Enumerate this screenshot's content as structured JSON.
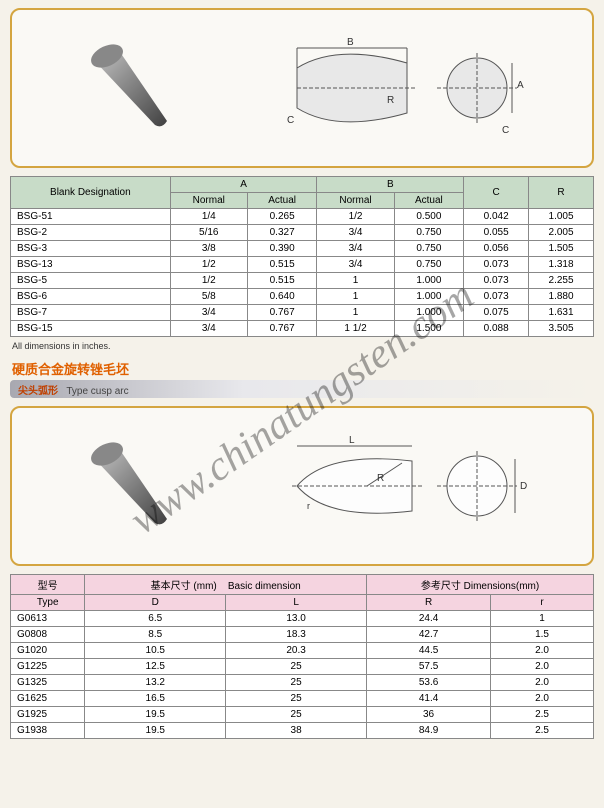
{
  "watermark": "www.chinatungsten.com",
  "footnote": "All dimensions in inches.",
  "section_title": "硬质合金旋转锉毛坯",
  "subtitle_cn": "尖头弧形",
  "subtitle_en": "Type cusp arc",
  "figure1": {
    "labels": {
      "B": "B",
      "A": "A",
      "C1": "C",
      "C2": "C",
      "R": "R"
    },
    "colors": {
      "card_border": "#d4a540",
      "card_bg": "#faf9f5",
      "cone_dark": "#5a5a5a",
      "cone_light": "#b8b8b8",
      "line": "#555"
    }
  },
  "figure2": {
    "labels": {
      "L": "L",
      "D": "D",
      "R": "R",
      "r": "r"
    },
    "colors": {
      "line": "#555"
    }
  },
  "table1": {
    "header_color": "#c8dcc8",
    "row_bg": "#ffffff",
    "headers": {
      "blank": "Blank Designation",
      "A": "A",
      "B": "B",
      "C": "C",
      "R": "R",
      "normal": "Normal",
      "actual": "Actual"
    },
    "rows": [
      {
        "d": "BSG-51",
        "an": "1/4",
        "aa": "0.265",
        "bn": "1/2",
        "ba": "0.500",
        "c": "0.042",
        "r": "1.005"
      },
      {
        "d": "BSG-2",
        "an": "5/16",
        "aa": "0.327",
        "bn": "3/4",
        "ba": "0.750",
        "c": "0.055",
        "r": "2.005"
      },
      {
        "d": "BSG-3",
        "an": "3/8",
        "aa": "0.390",
        "bn": "3/4",
        "ba": "0.750",
        "c": "0.056",
        "r": "1.505"
      },
      {
        "d": "BSG-13",
        "an": "1/2",
        "aa": "0.515",
        "bn": "3/4",
        "ba": "0.750",
        "c": "0.073",
        "r": "1.318"
      },
      {
        "d": "BSG-5",
        "an": "1/2",
        "aa": "0.515",
        "bn": "1",
        "ba": "1.000",
        "c": "0.073",
        "r": "2.255"
      },
      {
        "d": "BSG-6",
        "an": "5/8",
        "aa": "0.640",
        "bn": "1",
        "ba": "1.000",
        "c": "0.073",
        "r": "1.880"
      },
      {
        "d": "BSG-7",
        "an": "3/4",
        "aa": "0.767",
        "bn": "1",
        "ba": "1.000",
        "c": "0.075",
        "r": "1.631"
      },
      {
        "d": "BSG-15",
        "an": "3/4",
        "aa": "0.767",
        "bn": "1 1/2",
        "ba": "1.500",
        "c": "0.088",
        "r": "3.505"
      }
    ]
  },
  "table2": {
    "header_color": "#f5d4e0",
    "headers": {
      "type_cn": "型号",
      "type_en": "Type",
      "basic_cn": "基本尺寸 (mm)",
      "basic_en": "Basic dimension",
      "ref_cn": "参考尺寸",
      "ref_en": "Dimensions(mm)",
      "D": "D",
      "L": "L",
      "R": "R",
      "r": "r"
    },
    "rows": [
      {
        "t": "G0613",
        "D": "6.5",
        "L": "13.0",
        "R": "24.4",
        "r": "1"
      },
      {
        "t": "G0808",
        "D": "8.5",
        "L": "18.3",
        "R": "42.7",
        "r": "1.5"
      },
      {
        "t": "G1020",
        "D": "10.5",
        "L": "20.3",
        "R": "44.5",
        "r": "2.0"
      },
      {
        "t": "G1225",
        "D": "12.5",
        "L": "25",
        "R": "57.5",
        "r": "2.0"
      },
      {
        "t": "G1325",
        "D": "13.2",
        "L": "25",
        "R": "53.6",
        "r": "2.0"
      },
      {
        "t": "G1625",
        "D": "16.5",
        "L": "25",
        "R": "41.4",
        "r": "2.0"
      },
      {
        "t": "G1925",
        "D": "19.5",
        "L": "25",
        "R": "36",
        "r": "2.5"
      },
      {
        "t": "G1938",
        "D": "19.5",
        "L": "38",
        "R": "84.9",
        "r": "2.5"
      }
    ]
  }
}
